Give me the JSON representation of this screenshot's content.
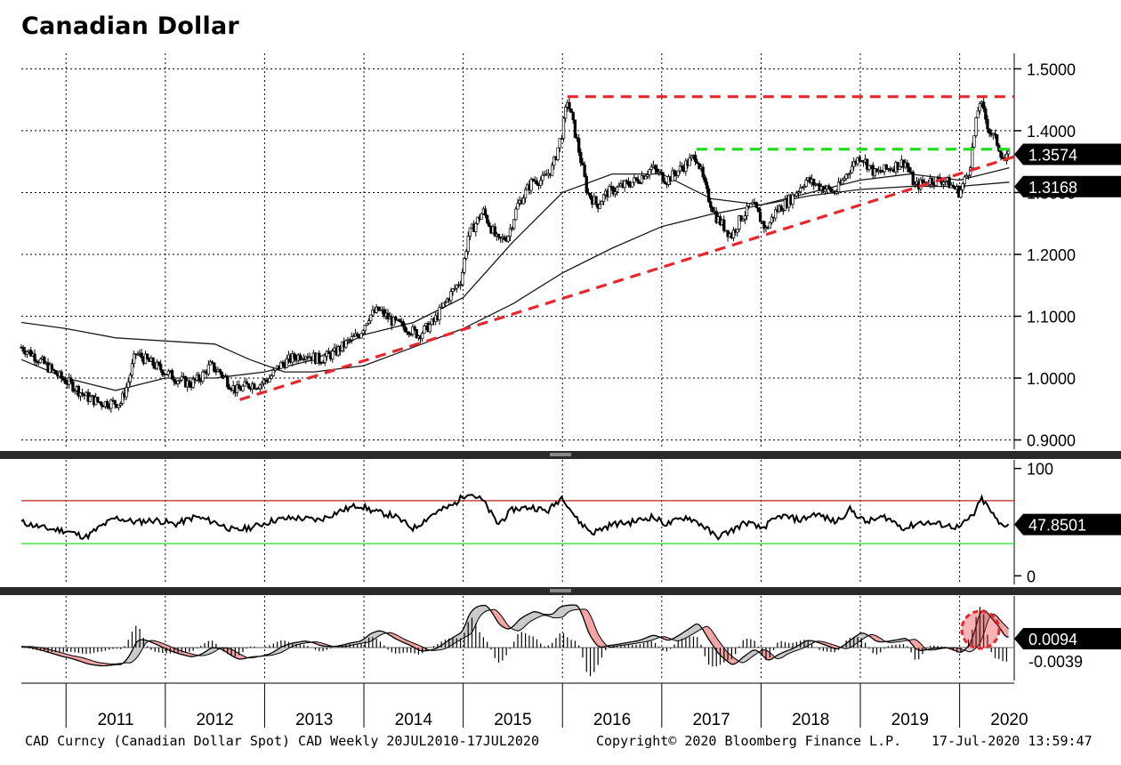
{
  "chart_data": {
    "title": "Canadian Dollar",
    "type": "line",
    "x_range": [
      2010.55,
      2020.55
    ],
    "years": [
      "2011",
      "2012",
      "2013",
      "2014",
      "2015",
      "2016",
      "2017",
      "2018",
      "2019",
      "2020"
    ],
    "price_panel": {
      "ylim": [
        0.885,
        1.525
      ],
      "tick_values": [
        0.9,
        1.0,
        1.1,
        1.2,
        1.3,
        1.4,
        1.5
      ],
      "tick_labels": [
        "0.9000",
        "1.0000",
        "1.1000",
        "1.2000",
        "1.3000",
        "1.4000",
        "1.5000"
      ],
      "series": [
        {
          "name": "CAD Spot",
          "type": "candlestick-line",
          "color": "#000000",
          "points": [
            [
              2010.55,
              1.05
            ],
            [
              2010.65,
              1.04
            ],
            [
              2010.8,
              1.02
            ],
            [
              2010.95,
              1.0
            ],
            [
              2011.05,
              0.99
            ],
            [
              2011.2,
              0.97
            ],
            [
              2011.35,
              0.96
            ],
            [
              2011.45,
              0.96
            ],
            [
              2011.55,
              0.96
            ],
            [
              2011.62,
              0.99
            ],
            [
              2011.7,
              1.04
            ],
            [
              2011.8,
              1.03
            ],
            [
              2011.9,
              1.02
            ],
            [
              2012.0,
              1.01
            ],
            [
              2012.1,
              1.0
            ],
            [
              2012.25,
              0.99
            ],
            [
              2012.35,
              1.0
            ],
            [
              2012.45,
              1.02
            ],
            [
              2012.55,
              1.01
            ],
            [
              2012.65,
              0.99
            ],
            [
              2012.72,
              0.98
            ],
            [
              2012.85,
              0.99
            ],
            [
              2012.95,
              0.99
            ],
            [
              2013.05,
              1.0
            ],
            [
              2013.15,
              1.02
            ],
            [
              2013.25,
              1.03
            ],
            [
              2013.4,
              1.04
            ],
            [
              2013.55,
              1.03
            ],
            [
              2013.7,
              1.04
            ],
            [
              2013.85,
              1.06
            ],
            [
              2013.95,
              1.07
            ],
            [
              2014.05,
              1.1
            ],
            [
              2014.15,
              1.11
            ],
            [
              2014.3,
              1.09
            ],
            [
              2014.45,
              1.08
            ],
            [
              2014.55,
              1.07
            ],
            [
              2014.7,
              1.09
            ],
            [
              2014.85,
              1.13
            ],
            [
              2014.98,
              1.16
            ],
            [
              2015.05,
              1.23
            ],
            [
              2015.2,
              1.27
            ],
            [
              2015.35,
              1.22
            ],
            [
              2015.45,
              1.23
            ],
            [
              2015.55,
              1.28
            ],
            [
              2015.7,
              1.32
            ],
            [
              2015.8,
              1.32
            ],
            [
              2015.9,
              1.34
            ],
            [
              2016.0,
              1.4
            ],
            [
              2016.05,
              1.45
            ],
            [
              2016.15,
              1.38
            ],
            [
              2016.25,
              1.3
            ],
            [
              2016.35,
              1.28
            ],
            [
              2016.45,
              1.3
            ],
            [
              2016.6,
              1.31
            ],
            [
              2016.75,
              1.32
            ],
            [
              2016.9,
              1.34
            ],
            [
              2017.05,
              1.32
            ],
            [
              2017.2,
              1.34
            ],
            [
              2017.35,
              1.36
            ],
            [
              2017.45,
              1.3
            ],
            [
              2017.55,
              1.26
            ],
            [
              2017.7,
              1.23
            ],
            [
              2017.8,
              1.26
            ],
            [
              2017.92,
              1.28
            ],
            [
              2018.05,
              1.24
            ],
            [
              2018.15,
              1.27
            ],
            [
              2018.3,
              1.29
            ],
            [
              2018.45,
              1.32
            ],
            [
              2018.6,
              1.31
            ],
            [
              2018.75,
              1.3
            ],
            [
              2018.9,
              1.34
            ],
            [
              2019.0,
              1.36
            ],
            [
              2019.15,
              1.33
            ],
            [
              2019.3,
              1.34
            ],
            [
              2019.45,
              1.35
            ],
            [
              2019.55,
              1.31
            ],
            [
              2019.7,
              1.32
            ],
            [
              2019.85,
              1.32
            ],
            [
              2020.0,
              1.3
            ],
            [
              2020.1,
              1.34
            ],
            [
              2020.2,
              1.45
            ],
            [
              2020.3,
              1.4
            ],
            [
              2020.38,
              1.38
            ],
            [
              2020.45,
              1.35
            ],
            [
              2020.5,
              1.36
            ]
          ]
        },
        {
          "name": "MA 52",
          "color": "#1a1a1a",
          "points": [
            [
              2010.55,
              1.03
            ],
            [
              2011.0,
              1.0
            ],
            [
              2011.5,
              0.98
            ],
            [
              2012.0,
              1.0
            ],
            [
              2012.5,
              1.0
            ],
            [
              2013.0,
              1.01
            ],
            [
              2013.5,
              1.03
            ],
            [
              2014.0,
              1.07
            ],
            [
              2014.5,
              1.09
            ],
            [
              2015.0,
              1.13
            ],
            [
              2015.5,
              1.22
            ],
            [
              2016.0,
              1.3
            ],
            [
              2016.5,
              1.33
            ],
            [
              2017.0,
              1.33
            ],
            [
              2017.5,
              1.29
            ],
            [
              2018.0,
              1.28
            ],
            [
              2018.5,
              1.3
            ],
            [
              2019.0,
              1.32
            ],
            [
              2019.5,
              1.33
            ],
            [
              2020.0,
              1.32
            ],
            [
              2020.5,
              1.34
            ]
          ]
        },
        {
          "name": "MA 200",
          "color": "#1a1a1a",
          "points": [
            [
              2010.55,
              1.09
            ],
            [
              2011.0,
              1.08
            ],
            [
              2011.5,
              1.065
            ],
            [
              2012.0,
              1.06
            ],
            [
              2012.5,
              1.055
            ],
            [
              2012.85,
              1.03
            ],
            [
              2013.2,
              1.01
            ],
            [
              2013.5,
              1.01
            ],
            [
              2014.0,
              1.02
            ],
            [
              2014.5,
              1.05
            ],
            [
              2015.0,
              1.08
            ],
            [
              2015.5,
              1.12
            ],
            [
              2016.0,
              1.17
            ],
            [
              2016.5,
              1.21
            ],
            [
              2017.0,
              1.245
            ],
            [
              2017.5,
              1.265
            ],
            [
              2018.0,
              1.28
            ],
            [
              2018.5,
              1.295
            ],
            [
              2019.0,
              1.305
            ],
            [
              2019.5,
              1.31
            ],
            [
              2020.0,
              1.31
            ],
            [
              2020.5,
              1.3168
            ]
          ]
        }
      ],
      "lines": [
        {
          "name": "Resistance 1.4550",
          "style": "dashed",
          "color": "#e8262b",
          "x": [
            2016.05,
            2020.55
          ],
          "y": [
            1.455,
            1.455
          ]
        },
        {
          "name": "Support 1.3700",
          "style": "dashed",
          "color": "#22dd22",
          "x": [
            2017.35,
            2020.55
          ],
          "y": [
            1.37,
            1.37
          ]
        },
        {
          "name": "Rising trendline",
          "style": "dashed",
          "color": "#e8262b",
          "x": [
            2012.75,
            2020.55
          ],
          "y": [
            0.965,
            1.358
          ]
        }
      ],
      "last_values": [
        {
          "label": "1.3574",
          "value": 1.3574
        },
        {
          "label": "1.3168",
          "value": 1.3168
        }
      ]
    },
    "rsi_panel": {
      "ylim": [
        -8,
        108
      ],
      "tick_values": [
        0,
        100
      ],
      "tick_labels": [
        "0",
        "100"
      ],
      "overbought": 70,
      "oversold": 30,
      "last_value": {
        "label": "47.8501",
        "value": 47.8501
      },
      "points": [
        [
          2010.55,
          50
        ],
        [
          2010.8,
          44
        ],
        [
          2011.0,
          42
        ],
        [
          2011.2,
          36
        ],
        [
          2011.35,
          46
        ],
        [
          2011.5,
          54
        ],
        [
          2011.7,
          50
        ],
        [
          2011.9,
          52
        ],
        [
          2012.1,
          48
        ],
        [
          2012.3,
          55
        ],
        [
          2012.5,
          50
        ],
        [
          2012.7,
          42
        ],
        [
          2012.9,
          46
        ],
        [
          2013.1,
          52
        ],
        [
          2013.3,
          54
        ],
        [
          2013.55,
          52
        ],
        [
          2013.75,
          60
        ],
        [
          2013.95,
          66
        ],
        [
          2014.1,
          60
        ],
        [
          2014.3,
          56
        ],
        [
          2014.5,
          44
        ],
        [
          2014.7,
          58
        ],
        [
          2014.9,
          66
        ],
        [
          2015.05,
          78
        ],
        [
          2015.2,
          70
        ],
        [
          2015.35,
          48
        ],
        [
          2015.5,
          62
        ],
        [
          2015.7,
          64
        ],
        [
          2015.85,
          60
        ],
        [
          2016.0,
          74
        ],
        [
          2016.15,
          52
        ],
        [
          2016.3,
          40
        ],
        [
          2016.5,
          48
        ],
        [
          2016.7,
          50
        ],
        [
          2016.9,
          55
        ],
        [
          2017.05,
          48
        ],
        [
          2017.25,
          55
        ],
        [
          2017.4,
          48
        ],
        [
          2017.55,
          36
        ],
        [
          2017.7,
          42
        ],
        [
          2017.85,
          50
        ],
        [
          2018.0,
          44
        ],
        [
          2018.2,
          56
        ],
        [
          2018.4,
          52
        ],
        [
          2018.55,
          58
        ],
        [
          2018.75,
          50
        ],
        [
          2018.9,
          62
        ],
        [
          2019.05,
          50
        ],
        [
          2019.25,
          55
        ],
        [
          2019.45,
          44
        ],
        [
          2019.6,
          50
        ],
        [
          2019.8,
          48
        ],
        [
          2020.0,
          45
        ],
        [
          2020.15,
          58
        ],
        [
          2020.22,
          72
        ],
        [
          2020.3,
          62
        ],
        [
          2020.4,
          48
        ],
        [
          2020.5,
          47.8501
        ]
      ]
    },
    "macd_panel": {
      "last_values": [
        {
          "label": "0.0094",
          "value": 0.0094
        },
        {
          "label": "-0.0039",
          "value": -0.0039
        }
      ]
    },
    "annotations": [
      "red dashed circle highlighting 2020 MACD cross"
    ]
  },
  "footer": {
    "left": "CAD Curncy (Canadian Dollar Spot) CAD  Weekly 20JUL2010-17JUL2020",
    "middle": "Copyright© 2020 Bloomberg Finance L.P.",
    "right": "17-Jul-2020 13:59:47"
  },
  "colors": {
    "red": "#e8262b",
    "green": "#22dd22",
    "pink": "#f2a0a0",
    "grey": "#c8c8c8"
  }
}
